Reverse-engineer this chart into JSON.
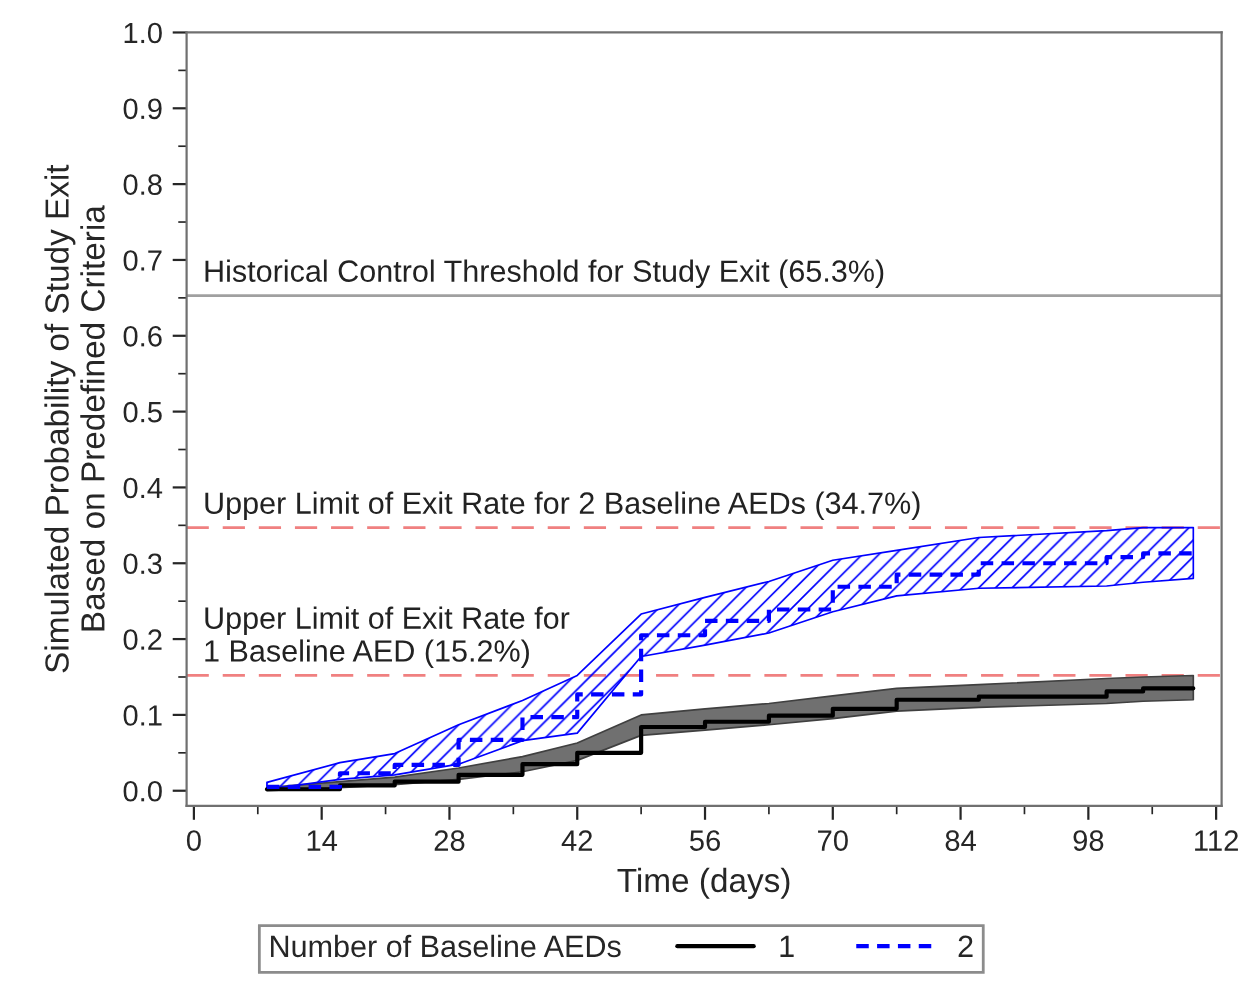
{
  "chart_data": {
    "type": "step",
    "xlabel": "Time (days)",
    "ylabel": "Simulated Probability of Study Exit\nBased on Predefined Criteria",
    "legend_title": "Number of Baseline AEDs",
    "legend": "bottom",
    "grid": false,
    "xlim": [
      -0.8,
      112.6
    ],
    "xticks": [
      0,
      14,
      28,
      42,
      56,
      70,
      84,
      98,
      112
    ],
    "ylim": [
      -0.02,
      1.0
    ],
    "yticks": [
      {
        "value": 0,
        "label": "0.0"
      },
      {
        "value": 0.1,
        "label": "0.1"
      },
      {
        "value": 0.2,
        "label": "0.2"
      },
      {
        "value": 0.3,
        "label": "0.3"
      },
      {
        "value": 0.4,
        "label": "0.4"
      },
      {
        "value": 0.5,
        "label": "0.5"
      },
      {
        "value": 0.6,
        "label": "0.6"
      },
      {
        "value": 0.7,
        "label": "0.7"
      },
      {
        "value": 0.8,
        "label": "0.8"
      },
      {
        "value": 0.9,
        "label": "0.9"
      },
      {
        "value": 1,
        "label": "1.0"
      }
    ],
    "x": [
      8,
      16,
      22,
      29,
      36,
      42,
      49,
      56,
      63,
      70,
      77,
      86,
      100,
      104,
      109.5
    ],
    "series": [
      {
        "name": "1",
        "color": "#000000",
        "line_style": "solid",
        "values": [
          0.002,
          0.007,
          0.012,
          0.021,
          0.035,
          0.05,
          0.084,
          0.091,
          0.099,
          0.108,
          0.12,
          0.124,
          0.131,
          0.135,
          0.135
        ],
        "lower": [
          0.0,
          0.004,
          0.008,
          0.015,
          0.025,
          0.04,
          0.073,
          0.08,
          0.087,
          0.095,
          0.105,
          0.11,
          0.115,
          0.118,
          0.12
        ],
        "upper": [
          0.004,
          0.012,
          0.018,
          0.03,
          0.045,
          0.063,
          0.1,
          0.108,
          0.115,
          0.125,
          0.135,
          0.14,
          0.148,
          0.15,
          0.152
        ]
      },
      {
        "name": "2",
        "color": "#0000ff",
        "line_style": "dashed",
        "values": [
          0.005,
          0.023,
          0.034,
          0.067,
          0.097,
          0.127,
          0.205,
          0.224,
          0.239,
          0.269,
          0.285,
          0.3,
          0.308,
          0.313,
          0.313
        ],
        "lower": [
          0.002,
          0.015,
          0.021,
          0.035,
          0.066,
          0.076,
          0.177,
          0.192,
          0.208,
          0.236,
          0.257,
          0.267,
          0.27,
          0.275,
          0.28
        ],
        "upper": [
          0.011,
          0.037,
          0.049,
          0.087,
          0.119,
          0.152,
          0.233,
          0.255,
          0.276,
          0.304,
          0.317,
          0.334,
          0.343,
          0.347,
          0.347
        ]
      }
    ],
    "ref_lines": [
      {
        "axis": "y",
        "value": 0.653,
        "label": "Historical Control Threshold for Study Exit (65.3%)",
        "color": "#a0a0a0",
        "line_style": "solid"
      },
      {
        "axis": "y",
        "value": 0.347,
        "label": "Upper Limit of Exit Rate for 2 Baseline AEDs (34.7%)",
        "color": "#f08080",
        "line_style": "dashed"
      },
      {
        "axis": "y",
        "value": 0.152,
        "label": "Upper Limit of Exit Rate for\n1 Baseline AED (15.2%)",
        "color": "#f08080",
        "line_style": "dashed"
      }
    ]
  }
}
